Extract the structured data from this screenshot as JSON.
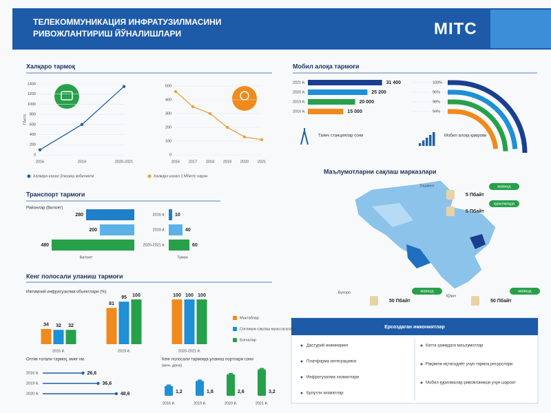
{
  "header": {
    "title": [
      "ТЕЛЕКОММУНИКАЦИЯ ИНФРАТУЗИЛМАСИНИ",
      "РИВОЖЛАНТИРИШ ЙЎНАЛИШЛАРИ"
    ],
    "logo": "MITC"
  },
  "chart_data": [
    {
      "type": "line",
      "title": "Халқаро тармоқ",
      "y_label": "Гбит/с",
      "categories": [
        "2016",
        "2019",
        "2020-2021"
      ],
      "series": [
        {
          "name": "Халқаро канал ўтказиш қобилияти",
          "color": "#1f5fa8",
          "values": [
            100,
            600,
            1350
          ]
        }
      ],
      "ylim": [
        0,
        1400
      ],
      "yticks": [
        0,
        200,
        400,
        600,
        800,
        1000,
        1200,
        1400
      ],
      "grid": true
    },
    {
      "type": "line",
      "categories": [
        "2016",
        "2017",
        "2018",
        "2019",
        "2020",
        "2021"
      ],
      "series": [
        {
          "name": "Халқаро канал 1 Мбит/с нархи",
          "color": "#e9a23b",
          "values": [
            460,
            350,
            300,
            200,
            130,
            110
          ]
        }
      ],
      "ylim": [
        0,
        500
      ],
      "yticks": [
        0,
        100,
        200,
        300,
        400,
        500
      ],
      "grid": true
    },
    {
      "type": "hbar",
      "title": "Транспорт тармоғи",
      "subtitle": "Районлар (Вилоят)",
      "categories": [
        "2016 й.",
        "2019 й.",
        "2020-2021 й."
      ],
      "colors": [
        "#1f7fc7",
        "#5bb2e6",
        "#27a04a"
      ],
      "series": [
        {
          "name": "Вилоят",
          "values": [
            280,
            200,
            480
          ],
          "xlim": [
            0,
            500
          ]
        },
        {
          "name": "Туман",
          "values": [
            10,
            40,
            60
          ],
          "xlim": [
            0,
            100
          ]
        }
      ]
    },
    {
      "type": "bar",
      "title": "Кенг полосали уланиш тармоғи",
      "subtitle": "Ижтимоий инфратузилма объектлари (%)",
      "categories": [
        "2016 й.",
        "2019 й.",
        "2020-2021 й."
      ],
      "series": [
        {
          "name": "Мактаблар",
          "color": "#f08a1c",
          "values": [
            34,
            81,
            100
          ]
        },
        {
          "name": "Соғлиқни сақлаш муассасалари",
          "color": "#1f8fd6",
          "values": [
            32,
            95,
            100
          ]
        },
        {
          "name": "Боғчалар",
          "color": "#27a04a",
          "values": [
            32,
            100,
            100
          ]
        }
      ],
      "ylim": [
        0,
        100
      ]
    },
    {
      "type": "lollipop",
      "title": "Оптик толали тармоқ, минг км.",
      "categories": [
        "2016 й.",
        "2019 й.",
        "2020 й."
      ],
      "values": [
        26.6,
        36.6,
        48.6
      ],
      "value_labels": [
        "26,6",
        "36,6",
        "48,6"
      ],
      "color": "#1f5fa8",
      "xlim": [
        0,
        50
      ]
    },
    {
      "type": "battery",
      "title": "Кенг полосали тармоққа уланиш портлари сони",
      "subtitle": "(млн. дона)",
      "categories": [
        "2016 й.",
        "2019 й.",
        "2020 й.",
        "2021 й."
      ],
      "values": [
        1.2,
        1.8,
        2.6,
        3.2
      ],
      "value_labels": [
        "1,2",
        "1,8",
        "2,6",
        "3,2"
      ],
      "colors": [
        "#1f8fd6",
        "#1f8fd6",
        "#27a04a",
        "#27a04a"
      ],
      "ylim": [
        0,
        3.5
      ]
    },
    {
      "type": "mobile",
      "title": "Мобил алоқа тармоғи",
      "categories": [
        "2021 й.",
        "2020 й.",
        "2019 й.",
        "2016 й."
      ],
      "colors": [
        "#1a3f8f",
        "#1f8fd6",
        "#27a04a",
        "#f08a1c"
      ],
      "series": [
        {
          "name": "Таянч станциялар сони",
          "values": [
            31400,
            25200,
            20000,
            15000
          ],
          "value_labels": [
            "31 400",
            "25 200",
            "20 000",
            "15 000"
          ],
          "xlim": [
            0,
            35000
          ]
        },
        {
          "name": "Мобил алоқа қамрови",
          "values": [
            100,
            96,
            98,
            94
          ],
          "value_labels": [
            "100%",
            "96%",
            "98%",
            "94%"
          ],
          "xlim": [
            0,
            100
          ]
        }
      ]
    }
  ],
  "storage": {
    "title": "Маълумотларни сақлаш марказлари",
    "centers": [
      {
        "city": "Тошкент",
        "capacity": "5 Пбайт",
        "status": "мавжуд"
      },
      {
        "city": "Тошкент",
        "capacity": "5 Пбайт",
        "status": "қурилмоқда"
      },
      {
        "city": "Бухоро",
        "capacity": "50 Пбайт",
        "status": "мавжуд"
      },
      {
        "city": "Қўқон",
        "capacity": "50 Пбайт",
        "status": "мавжуд"
      }
    ]
  },
  "opportunities": {
    "title": "Ерсоздаган имкониятлар",
    "left": [
      "Дастурий инжиниринг",
      "Платформа интеграцияси",
      "Инфратузилма хизматлари",
      "Булутли хизматлар"
    ],
    "right": [
      "Катта ҳажмдаги маълумотлар",
      "Рақамли иқтисодиёт учун тармоқ ресурслари",
      "Мобил қурилмалар ривожланиши учун шароит"
    ]
  }
}
